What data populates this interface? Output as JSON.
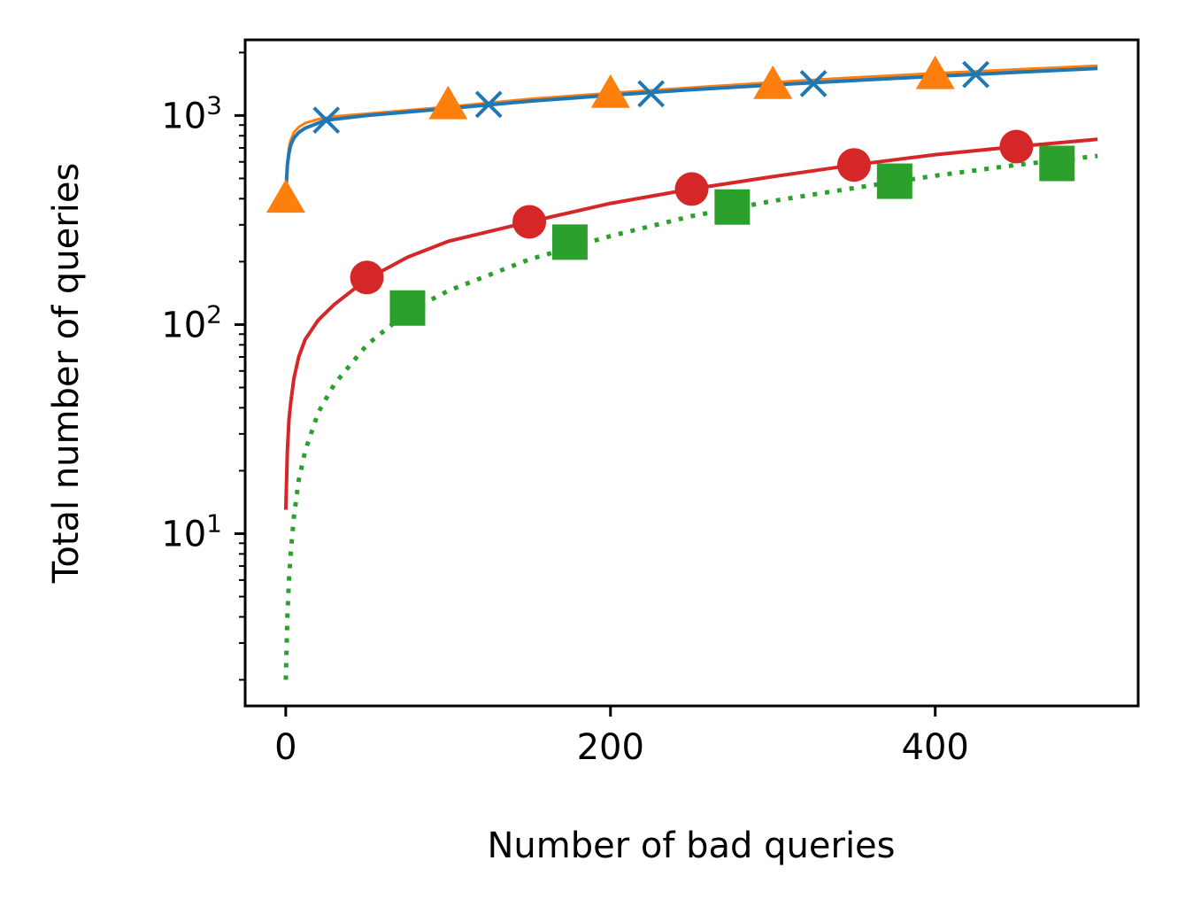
{
  "chart_data": {
    "type": "line",
    "title": "",
    "xlabel": "Number of bad queries",
    "ylabel": "Total number of queries",
    "xlim": [
      -25,
      525
    ],
    "ylim": [
      1.5,
      2300
    ],
    "yscale": "log",
    "grid": false,
    "x_ticks": [
      0,
      200,
      400
    ],
    "x_tick_labels": [
      "0",
      "200",
      "400"
    ],
    "y_ticks": [
      10,
      100,
      1000
    ],
    "y_tick_labels": [
      {
        "base": "10",
        "exp": "1"
      },
      {
        "base": "10",
        "exp": "2"
      },
      {
        "base": "10",
        "exp": "3"
      }
    ],
    "series": [
      {
        "color": "#ff7f0e",
        "line_style": "solid",
        "line_width": 3,
        "marker": "triangle",
        "x": [
          0,
          1,
          2,
          3,
          5,
          8,
          12,
          20,
          30,
          50,
          100,
          150,
          200,
          250,
          300,
          350,
          400,
          450,
          500
        ],
        "y": [
          430,
          600,
          700,
          760,
          830,
          880,
          920,
          960,
          990,
          1020,
          1100,
          1200,
          1280,
          1360,
          1440,
          1520,
          1590,
          1660,
          1730
        ],
        "marker_x": [
          0,
          100,
          200,
          300,
          400
        ],
        "marker_y": [
          400,
          1120,
          1270,
          1400,
          1560
        ]
      },
      {
        "color": "#1f77b4",
        "line_style": "solid",
        "line_width": 4,
        "marker": "x",
        "x": [
          0,
          1,
          2,
          3,
          5,
          8,
          12,
          20,
          25,
          50,
          100,
          150,
          200,
          250,
          300,
          350,
          400,
          450,
          500
        ],
        "y": [
          420,
          580,
          660,
          720,
          780,
          830,
          870,
          920,
          950,
          1000,
          1080,
          1170,
          1250,
          1330,
          1400,
          1470,
          1540,
          1610,
          1680
        ],
        "marker_x": [
          25,
          125,
          225,
          325,
          425
        ],
        "marker_y": [
          950,
          1130,
          1270,
          1420,
          1570
        ]
      },
      {
        "color": "#d62728",
        "line_style": "solid",
        "line_width": 4,
        "marker": "circle",
        "x": [
          0,
          1,
          2,
          3,
          5,
          8,
          12,
          20,
          30,
          50,
          75,
          100,
          150,
          200,
          250,
          300,
          350,
          400,
          450,
          500
        ],
        "y": [
          13,
          25,
          35,
          42,
          55,
          70,
          85,
          105,
          125,
          165,
          210,
          250,
          310,
          380,
          445,
          510,
          580,
          650,
          710,
          770
        ],
        "marker_x": [
          50,
          150,
          250,
          350,
          450
        ],
        "marker_y": [
          168,
          310,
          445,
          580,
          710
        ]
      },
      {
        "color": "#2ca02c",
        "line_style": "dotted",
        "line_width": 5,
        "marker": "square",
        "x": [
          0,
          1,
          2,
          3,
          5,
          8,
          12,
          20,
          30,
          50,
          75,
          100,
          150,
          200,
          250,
          300,
          350,
          400,
          450,
          500
        ],
        "y": [
          2,
          4,
          6,
          8,
          12,
          18,
          25,
          38,
          52,
          80,
          115,
          145,
          205,
          265,
          330,
          390,
          450,
          515,
          580,
          640
        ],
        "marker_x": [
          75,
          175,
          275,
          375,
          475
        ],
        "marker_y": [
          120,
          248,
          365,
          485,
          590
        ]
      }
    ]
  }
}
